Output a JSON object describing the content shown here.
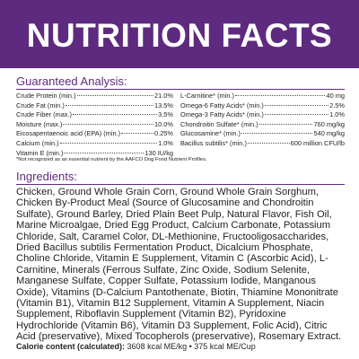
{
  "header": {
    "title": "NUTRITION FACTS"
  },
  "guaranteed_analysis": {
    "heading": "Guaranteed Analysis:",
    "left": [
      [
        "Crude Protein (min.)",
        "21.0%"
      ],
      [
        "Crude Fat (min.)",
        "13.5%"
      ],
      [
        "Crude Fiber (max.)",
        "3.5%"
      ],
      [
        "Moisture (max.)",
        "10.0%"
      ],
      [
        "Eicosapentaenoic acid (EPA) (min.)",
        "0.25%"
      ],
      [
        "Calcium (min.)",
        "1.0%"
      ],
      [
        "Vitamin E (min.)",
        "130 IU/kg"
      ]
    ],
    "right": [
      [
        "L-Carnitine* (min.)",
        "40 mg"
      ],
      [
        "Omega-6 Fatty Acids* (min.)",
        "2.5%"
      ],
      [
        "Omega-3 Fatty Acids* (min.)",
        "1.0%"
      ],
      [
        "Chondroitin Sulfate* (min.)",
        "760 mg/kg"
      ],
      [
        "Glucosamine* (min.)",
        "540 mg/kg"
      ],
      [
        "Bacillus subtilis* (min.)",
        "600 million CFU/lb"
      ]
    ],
    "footnote": "*Not recognized as an essential nutrient by the AAFCO Dog Food Nutrient Profiles."
  },
  "ingredients": {
    "heading": "Ingredients:",
    "text": "Chicken, Ground Whole Grain Corn, Ground Whole Grain Sorghum, Chicken By-Product Meal (Source of Glucosamine and Chondroitin Sulfate), Ground Barley, Dried Plain Beet Pulp, Natural Flavor, Fish Oil, Marine Microalgae, Dried Egg Product, Calcium Carbonate, Potassium Chloride, Salt, Caramel Color, DL-Methionine, Fructooligosaccharides, Dried Bacillus subtilis Fermentation Product, Dicalcium Phosphate, Choline Chloride, Vitamin E Supplement, Vitamin C (Ascorbic Acid), L-Carnitine, Minerals (Ferrous Sulfate, Zinc Oxide, Sodium Selenite, Manganese Sulfate, Copper Sulfate, Potassium Iodide, Manganous Oxide), Vitamins (D-Calcium Pantothenate, Biotin, Thiamine Mononitrate (Vitamin B1), Vitamin B12 Supplement, Vitamin A Supplement, Niacin Supplement, Riboflavin Supplement (Vitamin B2), Pyridoxine Hydrochloride (Vitamin B6), Vitamin D3 Supplement, Folic Acid), Citric Acid (preservative), Mixed Tocopherols (preservative), Rosemary Extract."
  },
  "calorie": {
    "label": "Calorie content (calculated):",
    "value": "3608 kcal ME/kg • 375 kcal ME/Cup"
  }
}
